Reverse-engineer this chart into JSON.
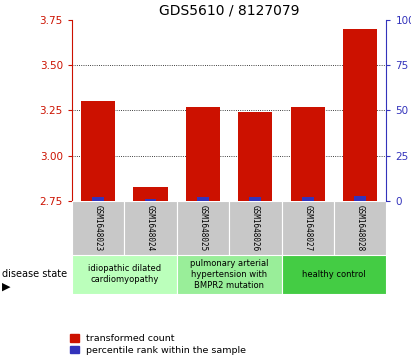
{
  "title": "GDS5610 / 8127079",
  "samples": [
    "GSM1648023",
    "GSM1648024",
    "GSM1648025",
    "GSM1648026",
    "GSM1648027",
    "GSM1648028"
  ],
  "transformed_count": [
    3.3,
    2.83,
    3.27,
    3.24,
    3.27,
    3.7
  ],
  "percentile_rank": [
    2,
    1,
    2,
    2,
    2,
    3
  ],
  "ylim_left": [
    2.75,
    3.75
  ],
  "ylim_right": [
    0,
    100
  ],
  "yticks_left": [
    2.75,
    3.0,
    3.25,
    3.5,
    3.75
  ],
  "yticks_right": [
    0,
    25,
    50,
    75,
    100
  ],
  "bar_base": 2.75,
  "bar_width": 0.65,
  "red_color": "#cc1100",
  "blue_color": "#3333bb",
  "bg_color": "#ffffff",
  "sample_bg": "#c8c8c8",
  "disease_groups": [
    {
      "label": "idiopathic dilated\ncardiomyopathy",
      "samples": [
        0,
        1
      ],
      "color": "#bbffbb"
    },
    {
      "label": "pulmonary arterial\nhypertension with\nBMPR2 mutation",
      "samples": [
        2,
        3
      ],
      "color": "#99ee99"
    },
    {
      "label": "healthy control",
      "samples": [
        4,
        5
      ],
      "color": "#44cc44"
    }
  ],
  "legend_red": "transformed count",
  "legend_blue": "percentile rank within the sample",
  "disease_state_label": "disease state",
  "left_color": "#cc1100",
  "right_color": "#3333bb",
  "title_fontsize": 10,
  "tick_fontsize": 7.5,
  "label_fontsize": 6,
  "gsm_fontsize": 5.5
}
